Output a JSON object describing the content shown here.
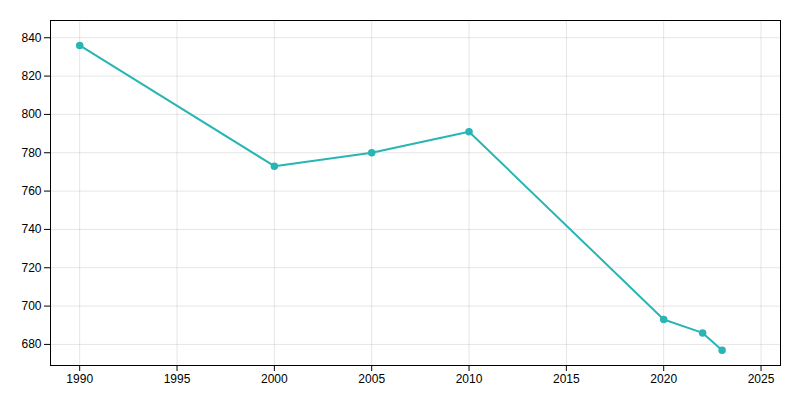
{
  "chart_data": {
    "type": "line",
    "x": [
      1990,
      2000,
      2005,
      2010,
      2020,
      2022,
      2023
    ],
    "values": [
      836,
      773,
      780,
      791,
      693,
      686,
      677
    ],
    "color": "#2ab5b5",
    "marker": "circle",
    "xlim": [
      1988.5,
      2026
    ],
    "ylim": [
      669,
      849
    ],
    "xticks": [
      1990,
      1995,
      2000,
      2005,
      2010,
      2015,
      2020,
      2025
    ],
    "yticks": [
      680,
      700,
      720,
      740,
      760,
      780,
      800,
      820,
      840
    ],
    "grid": true
  }
}
